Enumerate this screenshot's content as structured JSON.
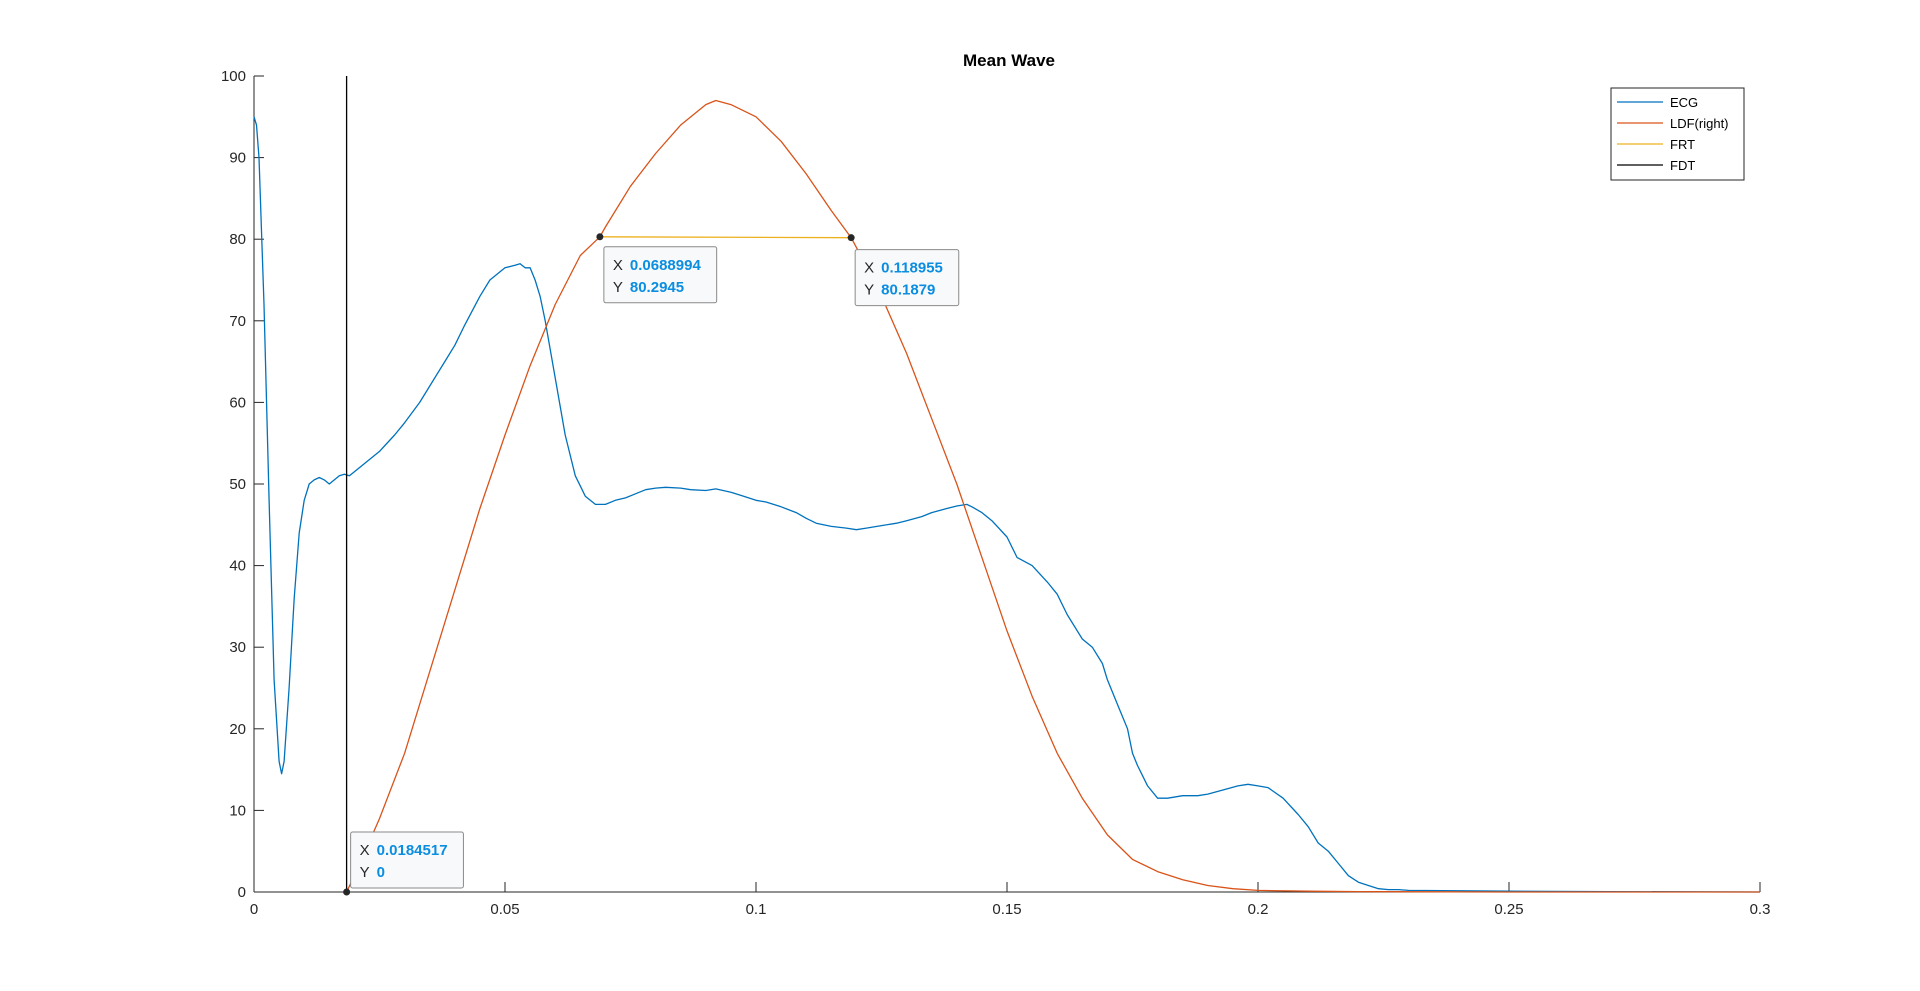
{
  "chart_data": {
    "type": "line",
    "title": "Mean Wave",
    "xlabel": "",
    "ylabel": "",
    "xlim": [
      0,
      0.3
    ],
    "ylim": [
      0,
      100
    ],
    "x_ticks": [
      0,
      0.05,
      0.1,
      0.15,
      0.2,
      0.25,
      0.3
    ],
    "x_tick_labels": [
      "0",
      "0.05",
      "0.1",
      "0.15",
      "0.2",
      "0.25",
      "0.3"
    ],
    "y_ticks": [
      0,
      10,
      20,
      30,
      40,
      50,
      60,
      70,
      80,
      90,
      100
    ],
    "y_tick_labels": [
      "0",
      "10",
      "20",
      "30",
      "40",
      "50",
      "60",
      "70",
      "80",
      "90",
      "100"
    ],
    "grid": false,
    "legend_position": "top-right",
    "series": [
      {
        "name": "ECG",
        "color": "#0072bd",
        "x": [
          0,
          0.0005,
          0.001,
          0.002,
          0.003,
          0.004,
          0.005,
          0.0055,
          0.006,
          0.007,
          0.008,
          0.009,
          0.01,
          0.011,
          0.012,
          0.013,
          0.014,
          0.015,
          0.016,
          0.017,
          0.018,
          0.019,
          0.02,
          0.022,
          0.025,
          0.028,
          0.03,
          0.033,
          0.035,
          0.038,
          0.04,
          0.042,
          0.045,
          0.047,
          0.05,
          0.052,
          0.053,
          0.054,
          0.055,
          0.056,
          0.057,
          0.058,
          0.06,
          0.062,
          0.064,
          0.066,
          0.068,
          0.07,
          0.072,
          0.074,
          0.076,
          0.078,
          0.08,
          0.082,
          0.085,
          0.087,
          0.09,
          0.092,
          0.095,
          0.097,
          0.1,
          0.102,
          0.105,
          0.108,
          0.11,
          0.112,
          0.115,
          0.118,
          0.12,
          0.122,
          0.125,
          0.128,
          0.13,
          0.133,
          0.135,
          0.138,
          0.14,
          0.142,
          0.143,
          0.145,
          0.147,
          0.15,
          0.152,
          0.155,
          0.158,
          0.16,
          0.162,
          0.165,
          0.167,
          0.169,
          0.17,
          0.172,
          0.174,
          0.175,
          0.176,
          0.178,
          0.18,
          0.182,
          0.185,
          0.188,
          0.19,
          0.193,
          0.196,
          0.198,
          0.2,
          0.202,
          0.205,
          0.208,
          0.21,
          0.212,
          0.214,
          0.216,
          0.218,
          0.22,
          0.222,
          0.224,
          0.226,
          0.228,
          0.23,
          0.25,
          0.27,
          0.3
        ],
        "y": [
          95,
          94,
          90,
          72,
          48,
          26,
          16,
          14.5,
          16,
          25,
          36,
          44,
          48,
          50,
          50.5,
          50.8,
          50.5,
          50,
          50.5,
          51,
          51.2,
          51,
          51.5,
          52.5,
          54,
          56,
          57.5,
          60,
          62,
          65,
          67,
          69.5,
          73,
          75,
          76.5,
          76.8,
          77,
          76.5,
          76.5,
          75,
          73,
          70,
          63,
          56,
          51,
          48.5,
          47.5,
          47.5,
          48,
          48.3,
          48.8,
          49.3,
          49.5,
          49.6,
          49.5,
          49.3,
          49.2,
          49.4,
          49,
          48.6,
          48,
          47.8,
          47.2,
          46.5,
          45.8,
          45.2,
          44.8,
          44.6,
          44.4,
          44.6,
          44.9,
          45.2,
          45.5,
          46,
          46.5,
          47,
          47.3,
          47.5,
          47.2,
          46.5,
          45.5,
          43.5,
          41,
          40,
          38,
          36.5,
          34,
          31,
          30,
          28,
          26,
          23,
          20,
          17,
          15.5,
          13,
          11.5,
          11.5,
          11.8,
          11.8,
          12,
          12.5,
          13,
          13.2,
          13,
          12.8,
          11.5,
          9.5,
          8,
          6,
          5,
          3.5,
          2,
          1.2,
          0.8,
          0.4,
          0.3,
          0.3,
          0.2,
          0.1,
          0.05,
          0
        ]
      },
      {
        "name": "LDF(right)",
        "color": "#d95319",
        "x": [
          0.0184517,
          0.02,
          0.025,
          0.03,
          0.035,
          0.04,
          0.045,
          0.05,
          0.055,
          0.06,
          0.065,
          0.0688994,
          0.07,
          0.075,
          0.08,
          0.085,
          0.09,
          0.092,
          0.095,
          0.1,
          0.105,
          0.11,
          0.115,
          0.118955,
          0.12,
          0.125,
          0.13,
          0.135,
          0.14,
          0.145,
          0.15,
          0.155,
          0.16,
          0.165,
          0.17,
          0.175,
          0.18,
          0.185,
          0.19,
          0.195,
          0.2,
          0.21,
          0.22,
          0.25,
          0.3
        ],
        "y": [
          0,
          2,
          9,
          17,
          27,
          37,
          47,
          56,
          64.5,
          72,
          78,
          80.2945,
          81.5,
          86.5,
          90.5,
          94,
          96.5,
          97,
          96.5,
          95,
          92,
          88,
          83.5,
          80.1879,
          79,
          73,
          66,
          58,
          50,
          41,
          32,
          24,
          17,
          11.5,
          7,
          4,
          2.5,
          1.5,
          0.8,
          0.4,
          0.2,
          0.1,
          0.05,
          0,
          0
        ]
      },
      {
        "name": "FRT",
        "color": "#edb120",
        "x": [
          0.0688994,
          0.118955
        ],
        "y": [
          80.2945,
          80.1879
        ]
      },
      {
        "name": "FDT",
        "color": "#000000",
        "x": [
          0.0184517,
          0.0184517
        ],
        "y": [
          0,
          100
        ]
      }
    ],
    "datatips": [
      {
        "x_label": "X",
        "x_value": "0.0688994",
        "y_label": "Y",
        "y_value": "80.2945",
        "x": 0.0688994,
        "y": 80.2945
      },
      {
        "x_label": "X",
        "x_value": "0.118955",
        "y_label": "Y",
        "y_value": "80.1879",
        "x": 0.118955,
        "y": 80.1879
      },
      {
        "x_label": "X",
        "x_value": "0.0184517",
        "y_label": "Y",
        "y_value": "0",
        "x": 0.0184517,
        "y": 0
      }
    ]
  }
}
